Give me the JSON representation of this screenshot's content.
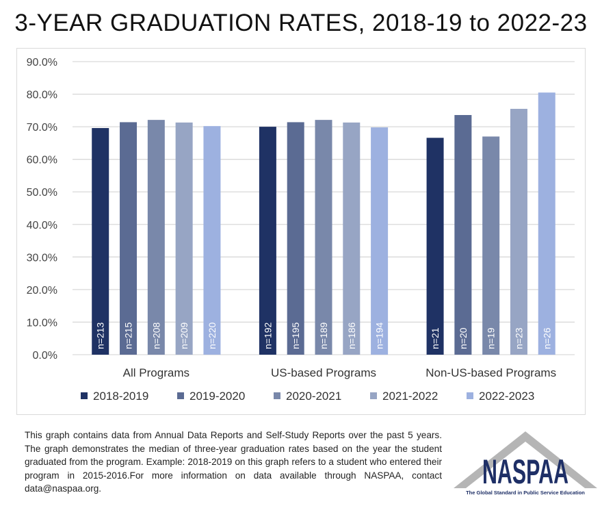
{
  "chart_data": {
    "type": "bar",
    "title": "3-YEAR GRADUATION RATES, 2018-19 to 2022-23",
    "xlabel": "",
    "ylabel": "",
    "ylim": [
      0,
      90
    ],
    "yticks": [
      "0.0%",
      "10.0%",
      "20.0%",
      "30.0%",
      "40.0%",
      "50.0%",
      "60.0%",
      "70.0%",
      "80.0%",
      "90.0%"
    ],
    "grid": true,
    "legend_position": "bottom",
    "categories": [
      "All Programs",
      "US-based Programs",
      "Non-US-based Programs"
    ],
    "series": [
      {
        "name": "2018-2019",
        "color": "#1f3264",
        "values": [
          69.6,
          70.0,
          66.6
        ],
        "labels": [
          "n=213",
          "n=192",
          "n=21"
        ]
      },
      {
        "name": "2019-2020",
        "color": "#5b6b93",
        "values": [
          71.4,
          71.4,
          73.6
        ],
        "labels": [
          "n=215",
          "n=195",
          "n=20"
        ]
      },
      {
        "name": "2020-2021",
        "color": "#7988aa",
        "values": [
          72.1,
          72.1,
          67.0
        ],
        "labels": [
          "n=208",
          "n=189",
          "n=19"
        ]
      },
      {
        "name": "2021-2022",
        "color": "#97a5c4",
        "values": [
          71.3,
          71.3,
          75.5
        ],
        "labels": [
          "n=209",
          "n=186",
          "n=23"
        ]
      },
      {
        "name": "2022-2023",
        "color": "#9db1e0",
        "values": [
          70.2,
          69.8,
          80.5
        ],
        "labels": [
          "n=220",
          "n=194",
          "n=26"
        ]
      }
    ]
  },
  "footnote": "This graph contains data from Annual Data Reports and Self-Study Reports over the past 5 years. The graph demonstrates the median of three-year graduation rates based on the year the student graduated from the program. Example: 2018-2019 on this graph refers to a student who entered their program in 2015-2016.For more information on data available through NASPAA, contact data@naspaa.org.",
  "logo": {
    "name": "NASPAA",
    "tagline": "The Global Standard in Public Service Education"
  }
}
